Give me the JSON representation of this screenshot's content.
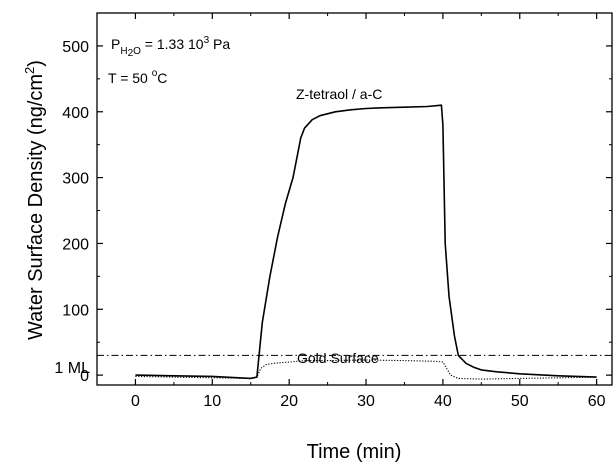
{
  "chart_data": {
    "type": "line",
    "xlabel": "Time (min)",
    "ylabel": {
      "main": "Water Surface Density (ng/cm",
      "superscript": "2",
      "close": ")"
    },
    "xlim": [
      -5,
      62
    ],
    "ylim": [
      -15,
      550
    ],
    "x_ticks": [
      0,
      10,
      20,
      30,
      40,
      50,
      60
    ],
    "y_ticks": [
      0,
      100,
      200,
      300,
      400,
      500
    ],
    "grid": false,
    "annotations": {
      "pressure": {
        "symbol": "P",
        "subscript_main": "H",
        "subscript_sub": "2",
        "subscript_end": "O",
        "value": " = 1.33 10",
        "exponent": "3",
        "unit": " Pa"
      },
      "temperature": {
        "prefix": "T = 50 ",
        "degree": "o",
        "unit": "C"
      },
      "series_label_solid": "Z-tetraol / a-C",
      "series_label_dotted": "Gold Surface",
      "monolayer_label": "1 ML"
    },
    "reference_line": {
      "y": 30,
      "style": "dash-dot"
    },
    "series": [
      {
        "style": "solid",
        "x": [
          0,
          5,
          10,
          15,
          15.8,
          16.5,
          17.5,
          18.5,
          19.5,
          20.5,
          21,
          21.5,
          22,
          23,
          24,
          26,
          28,
          30,
          32,
          35,
          38,
          39.8,
          40,
          40.3,
          40.8,
          41.5,
          42,
          43,
          44,
          45,
          47,
          50,
          55,
          60
        ],
        "y": [
          0,
          -1,
          -2,
          -5,
          -3,
          80,
          150,
          210,
          260,
          300,
          330,
          360,
          375,
          388,
          394,
          400,
          403,
          405,
          406,
          407,
          408,
          410,
          380,
          200,
          120,
          60,
          30,
          18,
          12,
          8,
          5,
          2,
          -1,
          -3
        ]
      },
      {
        "style": "dotted",
        "x": [
          0,
          5,
          10,
          15,
          15.8,
          16.3,
          17,
          18,
          20,
          22,
          25,
          30,
          35,
          39,
          40,
          40.5,
          41,
          42,
          45,
          50,
          55,
          60
        ],
        "y": [
          -2,
          -3,
          -4,
          -5,
          -3,
          10,
          16,
          18,
          20,
          22,
          22,
          23,
          22,
          21,
          20,
          10,
          0,
          -5,
          -6,
          -5,
          -4,
          -3
        ]
      }
    ]
  }
}
